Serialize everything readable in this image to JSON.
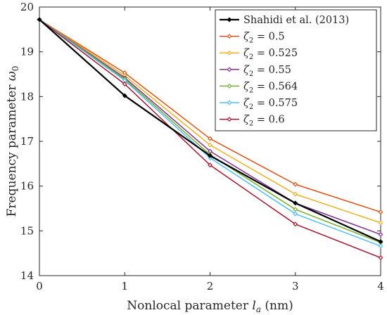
{
  "chart_data": {
    "type": "line",
    "xlabel": "Nonlocal parameter",
    "xlabel_symbol": "l",
    "xlabel_subscript": "a",
    "xlabel_unit": "(nm)",
    "ylabel": "Frequency parameter",
    "ylabel_symbol": "ω",
    "ylabel_subscript": "0",
    "xlim": [
      0,
      4
    ],
    "ylim": [
      14,
      20
    ],
    "xticks": [
      0,
      1,
      2,
      3,
      4
    ],
    "yticks": [
      14,
      15,
      16,
      17,
      18,
      19,
      20
    ],
    "grid": false,
    "legend_position": "top-right",
    "x": [
      0,
      1,
      2,
      3,
      4
    ],
    "series": [
      {
        "name": "Shahidi et al. (2013)",
        "symbol": "",
        "subscript": "",
        "value_text": "",
        "color": "#000000",
        "values": [
          19.72,
          18.02,
          16.68,
          15.62,
          14.76
        ]
      },
      {
        "name": "",
        "symbol": "ζ",
        "subscript": "2",
        "value_text": " = 0.5",
        "color": "#d95319",
        "values": [
          19.72,
          18.53,
          17.06,
          16.04,
          15.42
        ]
      },
      {
        "name": "",
        "symbol": "ζ",
        "subscript": "2",
        "value_text": " = 0.525",
        "color": "#edb120",
        "values": [
          19.72,
          18.47,
          16.92,
          15.82,
          15.18
        ]
      },
      {
        "name": "",
        "symbol": "ζ",
        "subscript": "2",
        "value_text": " = 0.55",
        "color": "#7e2f8e",
        "values": [
          19.72,
          18.42,
          16.78,
          15.62,
          14.92
        ]
      },
      {
        "name": "",
        "symbol": "ζ",
        "subscript": "2",
        "value_text": " = 0.564",
        "color": "#77ac30",
        "values": [
          19.72,
          18.39,
          16.7,
          15.48,
          14.74
        ]
      },
      {
        "name": "",
        "symbol": "ζ",
        "subscript": "2",
        "value_text": " = 0.575",
        "color": "#4dbeee",
        "values": [
          19.72,
          18.36,
          16.63,
          15.38,
          14.66
        ]
      },
      {
        "name": "",
        "symbol": "ζ",
        "subscript": "2",
        "value_text": " = 0.6",
        "color": "#a2142f",
        "values": [
          19.72,
          18.28,
          16.47,
          15.15,
          14.4
        ]
      }
    ]
  }
}
